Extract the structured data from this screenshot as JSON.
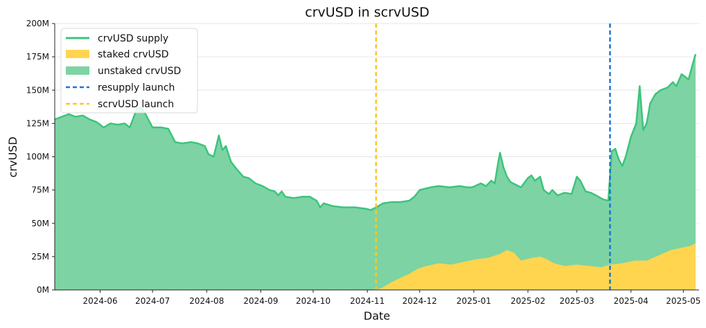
{
  "chart_data": {
    "type": "area",
    "title": "crvUSD in scrvUSD",
    "xlabel": "Date",
    "ylabel": "crvUSD",
    "x_ticks": [
      "2024-06",
      "2024-07",
      "2024-08",
      "2024-09",
      "2024-10",
      "2024-11",
      "2024-12",
      "2025-01",
      "2025-02",
      "2025-03",
      "2025-04",
      "2025-05"
    ],
    "y_ticks": [
      "0M",
      "25M",
      "50M",
      "75M",
      "100M",
      "125M",
      "150M",
      "175M",
      "200M"
    ],
    "ylim": [
      0,
      200
    ],
    "y_unit": "M",
    "xlim": [
      "2024-05-06",
      "2025-05-10"
    ],
    "grid": "horizontal",
    "legend": {
      "position": "top-left",
      "entries": [
        {
          "label": "crvUSD supply",
          "kind": "line",
          "color": "#3cc47c"
        },
        {
          "label": "staked crvUSD",
          "kind": "patch",
          "color": "#ffd54f"
        },
        {
          "label": "unstaked crvUSD",
          "kind": "patch",
          "color": "#7dd3a3"
        },
        {
          "label": "resupply launch",
          "kind": "dashed",
          "color": "#1976d2"
        },
        {
          "label": "scrvUSD launch",
          "kind": "dashed",
          "color": "#f9c825"
        }
      ]
    },
    "colors": {
      "supply_line": "#3cc47c",
      "unstaked_fill": "#7dd3a3",
      "staked_fill": "#ffd54f",
      "resupply_line": "#1976d2",
      "scrvusd_line": "#f9c825"
    },
    "vlines": [
      {
        "name": "scrvUSD launch",
        "date": "2024-11-06"
      },
      {
        "name": "resupply launch",
        "date": "2025-03-20"
      }
    ],
    "series": [
      {
        "name": "crvUSD supply",
        "points": [
          [
            "2024-05-06",
            128
          ],
          [
            "2024-05-10",
            130
          ],
          [
            "2024-05-14",
            132
          ],
          [
            "2024-05-18",
            130
          ],
          [
            "2024-05-22",
            131
          ],
          [
            "2024-05-26",
            128
          ],
          [
            "2024-05-30",
            126
          ],
          [
            "2024-06-03",
            122
          ],
          [
            "2024-06-07",
            125
          ],
          [
            "2024-06-11",
            124
          ],
          [
            "2024-06-15",
            125
          ],
          [
            "2024-06-18",
            122
          ],
          [
            "2024-06-22",
            136
          ],
          [
            "2024-06-24",
            137
          ],
          [
            "2024-06-27",
            132
          ],
          [
            "2024-07-01",
            122
          ],
          [
            "2024-07-06",
            122
          ],
          [
            "2024-07-10",
            121
          ],
          [
            "2024-07-14",
            111
          ],
          [
            "2024-07-18",
            110
          ],
          [
            "2024-07-23",
            111
          ],
          [
            "2024-07-27",
            110
          ],
          [
            "2024-07-31",
            108
          ],
          [
            "2024-08-02",
            102
          ],
          [
            "2024-08-05",
            100
          ],
          [
            "2024-08-08",
            116
          ],
          [
            "2024-08-10",
            105
          ],
          [
            "2024-08-12",
            108
          ],
          [
            "2024-08-15",
            96
          ],
          [
            "2024-08-18",
            91
          ],
          [
            "2024-08-22",
            85
          ],
          [
            "2024-08-25",
            84
          ],
          [
            "2024-08-29",
            80
          ],
          [
            "2024-09-02",
            78
          ],
          [
            "2024-09-06",
            75
          ],
          [
            "2024-09-09",
            74
          ],
          [
            "2024-09-11",
            71
          ],
          [
            "2024-09-13",
            74
          ],
          [
            "2024-09-15",
            70
          ],
          [
            "2024-09-20",
            69
          ],
          [
            "2024-09-25",
            70
          ],
          [
            "2024-09-29",
            70
          ],
          [
            "2024-10-03",
            67
          ],
          [
            "2024-10-05",
            62
          ],
          [
            "2024-10-07",
            65
          ],
          [
            "2024-10-12",
            63
          ],
          [
            "2024-10-18",
            62
          ],
          [
            "2024-10-25",
            62
          ],
          [
            "2024-10-31",
            61
          ],
          [
            "2024-11-03",
            60
          ],
          [
            "2024-11-06",
            62
          ],
          [
            "2024-11-10",
            65
          ],
          [
            "2024-11-15",
            66
          ],
          [
            "2024-11-20",
            66
          ],
          [
            "2024-11-25",
            67
          ],
          [
            "2024-11-28",
            70
          ],
          [
            "2024-12-01",
            75
          ],
          [
            "2024-12-07",
            77
          ],
          [
            "2024-12-12",
            78
          ],
          [
            "2024-12-18",
            77
          ],
          [
            "2024-12-24",
            78
          ],
          [
            "2024-12-28",
            77
          ],
          [
            "2024-12-31",
            77
          ],
          [
            "2025-01-05",
            80
          ],
          [
            "2025-01-08",
            78
          ],
          [
            "2025-01-11",
            82
          ],
          [
            "2025-01-13",
            80
          ],
          [
            "2025-01-15",
            96
          ],
          [
            "2025-01-16",
            103
          ],
          [
            "2025-01-18",
            92
          ],
          [
            "2025-01-20",
            85
          ],
          [
            "2025-01-22",
            81
          ],
          [
            "2025-01-25",
            79
          ],
          [
            "2025-01-28",
            77
          ],
          [
            "2025-02-01",
            84
          ],
          [
            "2025-02-03",
            86
          ],
          [
            "2025-02-05",
            82
          ],
          [
            "2025-02-08",
            85
          ],
          [
            "2025-02-10",
            75
          ],
          [
            "2025-02-13",
            72
          ],
          [
            "2025-02-15",
            75
          ],
          [
            "2025-02-18",
            71
          ],
          [
            "2025-02-22",
            73
          ],
          [
            "2025-02-26",
            72
          ],
          [
            "2025-03-01",
            85
          ],
          [
            "2025-03-03",
            82
          ],
          [
            "2025-03-06",
            74
          ],
          [
            "2025-03-09",
            73
          ],
          [
            "2025-03-12",
            71
          ],
          [
            "2025-03-16",
            68
          ],
          [
            "2025-03-19",
            67
          ],
          [
            "2025-03-21",
            104
          ],
          [
            "2025-03-23",
            106
          ],
          [
            "2025-03-25",
            98
          ],
          [
            "2025-03-27",
            93
          ],
          [
            "2025-03-29",
            100
          ],
          [
            "2025-04-01",
            115
          ],
          [
            "2025-04-04",
            125
          ],
          [
            "2025-04-06",
            153
          ],
          [
            "2025-04-08",
            120
          ],
          [
            "2025-04-10",
            125
          ],
          [
            "2025-04-12",
            140
          ],
          [
            "2025-04-15",
            147
          ],
          [
            "2025-04-18",
            150
          ],
          [
            "2025-04-22",
            152
          ],
          [
            "2025-04-25",
            156
          ],
          [
            "2025-04-27",
            153
          ],
          [
            "2025-04-30",
            162
          ],
          [
            "2025-05-02",
            160
          ],
          [
            "2025-05-04",
            158
          ],
          [
            "2025-05-06",
            168
          ],
          [
            "2025-05-08",
            177
          ]
        ]
      },
      {
        "name": "staked crvUSD",
        "points": [
          [
            "2024-11-06",
            0
          ],
          [
            "2024-11-10",
            2
          ],
          [
            "2024-11-15",
            6
          ],
          [
            "2024-11-20",
            9
          ],
          [
            "2024-11-25",
            12
          ],
          [
            "2024-11-30",
            16
          ],
          [
            "2024-12-05",
            18
          ],
          [
            "2024-12-12",
            20
          ],
          [
            "2024-12-19",
            19
          ],
          [
            "2024-12-26",
            21
          ],
          [
            "2025-01-02",
            23
          ],
          [
            "2025-01-09",
            24
          ],
          [
            "2025-01-16",
            27
          ],
          [
            "2025-01-20",
            30
          ],
          [
            "2025-01-24",
            28
          ],
          [
            "2025-01-28",
            22
          ],
          [
            "2025-02-03",
            24
          ],
          [
            "2025-02-08",
            25
          ],
          [
            "2025-02-12",
            23
          ],
          [
            "2025-02-16",
            20
          ],
          [
            "2025-02-22",
            18
          ],
          [
            "2025-03-01",
            19
          ],
          [
            "2025-03-08",
            18
          ],
          [
            "2025-03-15",
            17
          ],
          [
            "2025-03-20",
            19
          ],
          [
            "2025-03-27",
            20
          ],
          [
            "2025-04-03",
            22
          ],
          [
            "2025-04-10",
            22
          ],
          [
            "2025-04-17",
            26
          ],
          [
            "2025-04-24",
            30
          ],
          [
            "2025-05-01",
            32
          ],
          [
            "2025-05-05",
            33
          ],
          [
            "2025-05-08",
            35
          ]
        ]
      }
    ]
  }
}
